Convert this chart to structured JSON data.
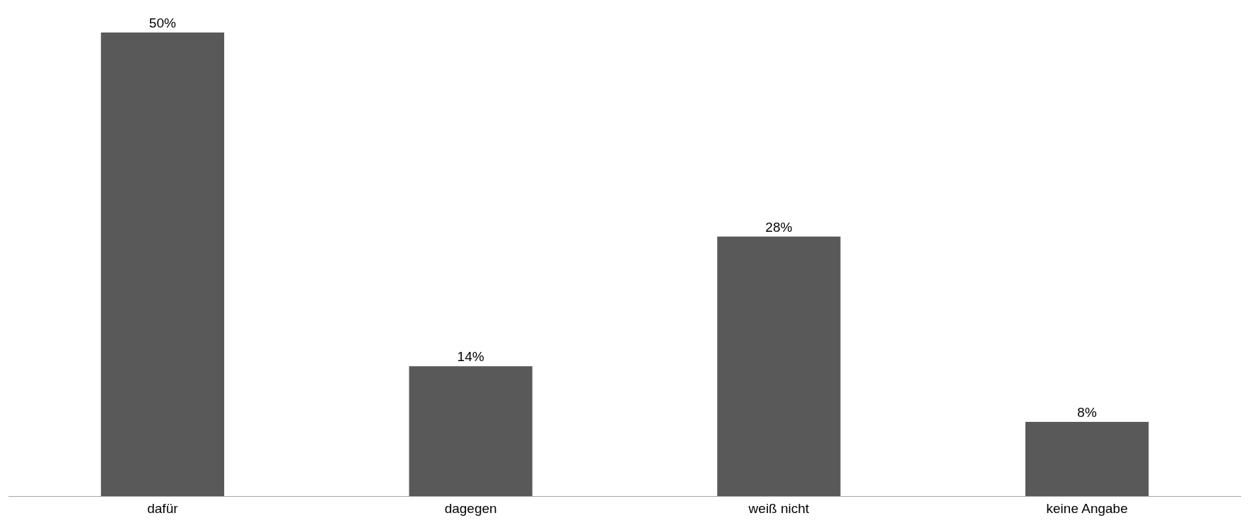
{
  "chart_data": {
    "type": "bar",
    "categories": [
      "dafür",
      "dagegen",
      "weiß nicht",
      "keine Angabe"
    ],
    "values": [
      50,
      14,
      28,
      8
    ],
    "value_labels": [
      "50%",
      "14%",
      "28%",
      "8%"
    ],
    "color": "#595959"
  }
}
